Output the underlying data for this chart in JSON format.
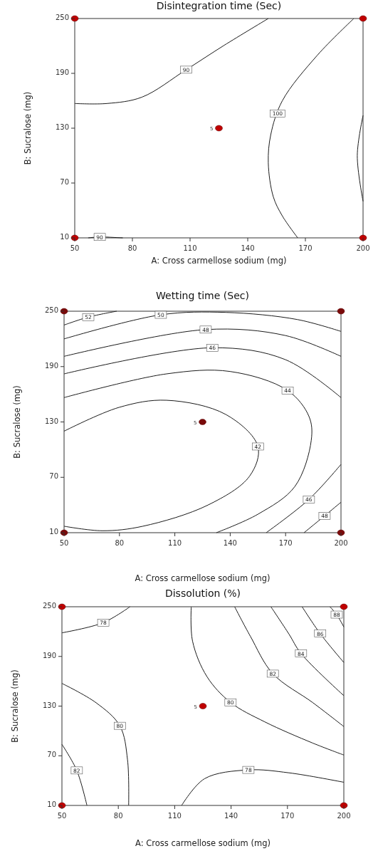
{
  "chart_data": [
    {
      "type": "line",
      "title": "Disintegration time (Sec)",
      "xlabel": "A: Cross carmellose sodium (mg)",
      "ylabel": "B: Sucralose (mg)",
      "xlim": [
        50,
        200
      ],
      "ylim": [
        10,
        250
      ],
      "xticks": [
        50,
        80,
        110,
        140,
        170,
        200
      ],
      "yticks": [
        10,
        70,
        130,
        190,
        250
      ],
      "series": [
        {
          "color": "#1a1a1a",
          "x": [
            50,
            66.7,
            85,
            108,
            127.6,
            150.7
          ],
          "values": [
            157,
            157,
            164,
            194,
            220.5,
            250
          ]
        },
        {
          "color": "#1a1a1a",
          "x": [
            57,
            63,
            70,
            75
          ],
          "values": [
            10,
            11,
            10.5,
            10
          ]
        },
        {
          "color": "#1a1a1a",
          "x": [
            195.2,
            176.3,
            158,
            152,
            150.7,
            153.3,
            158,
            166
          ],
          "values": [
            250,
            210,
            160,
            123,
            92,
            55,
            34,
            10
          ]
        },
        {
          "color": "#1a1a1a",
          "x": [
            200,
            197,
            200
          ],
          "values": [
            144,
            100,
            50
          ]
        },
        {
          "type": "scatter",
          "color": "#c00000",
          "marker": "circle",
          "x": [
            50,
            200,
            125,
            50,
            200
          ],
          "values": [
            250,
            250,
            130,
            10,
            10
          ]
        }
      ],
      "annotations": [
        {
          "text": "90",
          "x": 108,
          "y": 194
        },
        {
          "text": "90",
          "x": 63,
          "y": 11
        },
        {
          "text": "100",
          "x": 155.5,
          "y": 146
        },
        {
          "text": "5",
          "x": 125,
          "y": 130
        }
      ]
    },
    {
      "type": "line",
      "title": "Wetting time (Sec)",
      "xlabel": "A: Cross carmellose sodium (mg)",
      "ylabel": "B: Sucralose (mg)",
      "xlim": [
        50,
        200
      ],
      "ylim": [
        10,
        250
      ],
      "xticks": [
        50,
        80,
        110,
        140,
        170,
        200
      ],
      "yticks": [
        10,
        70,
        130,
        190,
        250
      ],
      "series": [
        {
          "color": "#1a1a1a",
          "x": [
            50,
            63.1,
            78.5
          ],
          "values": [
            235,
            243.6,
            250
          ]
        },
        {
          "color": "#1a1a1a",
          "x": [
            50,
            102.4,
            137.7,
            176.3,
            200
          ],
          "values": [
            220,
            246.1,
            248.7,
            241,
            228.1
          ]
        },
        {
          "color": "#1a1a1a",
          "x": [
            50,
            126.7,
            169.8,
            200
          ],
          "values": [
            201.1,
            230.1,
            223.7,
            201.1
          ]
        },
        {
          "color": "#1a1a1a",
          "x": [
            50,
            130.3,
            169.8,
            200
          ],
          "values": [
            182.1,
            210.4,
            197.6,
            156.4
          ]
        },
        {
          "color": "#1a1a1a",
          "x": [
            50,
            105.5,
            139.9,
            171.1,
            182.7,
            183.9,
            175,
            155,
            132.5
          ],
          "values": [
            156.4,
            182.1,
            184.7,
            164.1,
            135.8,
            110.1,
            60,
            30,
            10
          ]
        },
        {
          "color": "#1a1a1a",
          "x": [
            50,
            79.8,
            105.5,
            137.7,
            155,
            150.5,
            128,
            92.7,
            70.8,
            50
          ],
          "values": [
            120,
            145.8,
            153.5,
            138,
            103.4,
            71.3,
            40,
            17,
            12.1,
            17
          ]
        },
        {
          "color": "#1a1a1a",
          "x": [
            200,
            182.6,
            159.5
          ],
          "values": [
            84,
            46,
            10
          ]
        },
        {
          "color": "#1a1a1a",
          "x": [
            200,
            191.1,
            180
          ],
          "values": [
            43,
            28.2,
            10
          ]
        },
        {
          "type": "scatter",
          "color": "#7a0a0a",
          "marker": "circle",
          "x": [
            50,
            200,
            125,
            50,
            200
          ],
          "values": [
            250,
            250,
            130,
            10,
            10
          ]
        }
      ],
      "annotations": [
        {
          "text": "52",
          "x": 63.1,
          "y": 243.6
        },
        {
          "text": "50",
          "x": 102.4,
          "y": 246.1
        },
        {
          "text": "48",
          "x": 126.7,
          "y": 230.1
        },
        {
          "text": "46",
          "x": 130.3,
          "y": 210.4
        },
        {
          "text": "44",
          "x": 171.1,
          "y": 164.1
        },
        {
          "text": "42",
          "x": 155,
          "y": 103.4
        },
        {
          "text": "46",
          "x": 182.6,
          "y": 46
        },
        {
          "text": "48",
          "x": 191.1,
          "y": 28.2
        },
        {
          "text": "5",
          "x": 125,
          "y": 130
        }
      ]
    },
    {
      "type": "line",
      "title": "Dissolution (%)",
      "xlabel": "A: Cross carmellose sodium (mg)",
      "ylabel": "B: Sucralose (mg)",
      "xlim": [
        50,
        200
      ],
      "ylim": [
        10,
        250
      ],
      "xticks": [
        50,
        80,
        110,
        140,
        170,
        200
      ],
      "yticks": [
        10,
        70,
        130,
        190,
        250
      ],
      "series": [
        {
          "color": "#1a1a1a",
          "x": [
            50,
            72,
            86.2
          ],
          "values": [
            218.5,
            230.8,
            250
          ]
        },
        {
          "color": "#1a1a1a",
          "x": [
            50,
            68.2,
            80.8,
            84.9,
            85.5
          ],
          "values": [
            157.4,
            134,
            106.2,
            65.2,
            10
          ]
        },
        {
          "color": "#1a1a1a",
          "x": [
            50,
            57.9,
            63.3
          ],
          "values": [
            83.8,
            52.3,
            10
          ]
        },
        {
          "color": "#1a1a1a",
          "x": [
            118.8,
            119.5,
            127.2,
            139.7,
            157.9,
            183.6,
            200
          ],
          "values": [
            250,
            208.5,
            165.5,
            134.5,
            111,
            85.2,
            70.9
          ]
        },
        {
          "color": "#1a1a1a",
          "x": [
            141.9,
            150.3,
            162.2,
            183.6,
            200
          ],
          "values": [
            250,
            214.2,
            169.2,
            134,
            105.3
          ]
        },
        {
          "color": "#1a1a1a",
          "x": [
            161.2,
            170.8,
            177.2,
            200
          ],
          "values": [
            250,
            217,
            193.6,
            142.6
          ]
        },
        {
          "color": "#1a1a1a",
          "x": [
            177.8,
            187.4,
            200
          ],
          "values": [
            250,
            217.6,
            182.7
          ]
        },
        {
          "color": "#1a1a1a",
          "x": [
            192.6,
            196.2,
            200
          ],
          "values": [
            250,
            240.5,
            225.6
          ]
        },
        {
          "color": "#1a1a1a",
          "x": [
            113.7,
            125.9,
            149.2,
            170.8,
            200
          ],
          "values": [
            10,
            42.3,
            52.9,
            49.4,
            38
          ]
        },
        {
          "type": "scatter",
          "color": "#c00000",
          "marker": "circle",
          "x": [
            50,
            200,
            125,
            50,
            200
          ],
          "values": [
            250,
            250,
            130,
            10,
            10
          ]
        }
      ],
      "annotations": [
        {
          "text": "78",
          "x": 72,
          "y": 230.8
        },
        {
          "text": "80",
          "x": 80.8,
          "y": 106.2
        },
        {
          "text": "82",
          "x": 57.9,
          "y": 52.3
        },
        {
          "text": "80",
          "x": 139.7,
          "y": 134.5
        },
        {
          "text": "82",
          "x": 162.2,
          "y": 169.2
        },
        {
          "text": "84",
          "x": 177.2,
          "y": 193.6
        },
        {
          "text": "86",
          "x": 187.4,
          "y": 217.6
        },
        {
          "text": "88",
          "x": 196.2,
          "y": 240.5
        },
        {
          "text": "78",
          "x": 149.2,
          "y": 52.9
        },
        {
          "text": "5",
          "x": 125,
          "y": 130
        }
      ]
    }
  ]
}
